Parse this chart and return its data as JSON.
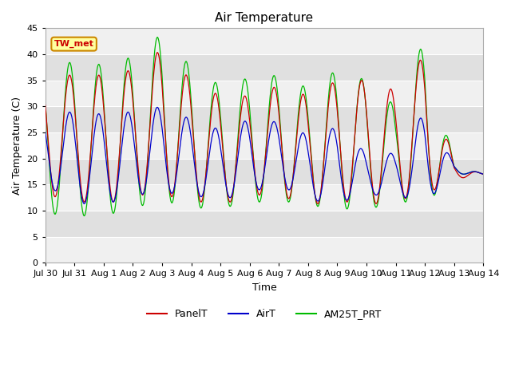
{
  "title": "Air Temperature",
  "ylabel": "Air Temperature (C)",
  "xlabel": "Time",
  "annotation": "TW_met",
  "ylim": [
    0,
    45
  ],
  "yticks": [
    0,
    5,
    10,
    15,
    20,
    25,
    30,
    35,
    40,
    45
  ],
  "x_tick_labels": [
    "Jul 30",
    "Jul 31",
    "Aug 1",
    "Aug 2",
    "Aug 3",
    "Aug 4",
    "Aug 5",
    "Aug 6",
    "Aug 7",
    "Aug 8",
    "Aug 9",
    "Aug 10",
    "Aug 11",
    "Aug 12",
    "Aug 13",
    "Aug 14"
  ],
  "line_colors": {
    "PanelT": "#cc0000",
    "AirT": "#0000cc",
    "AM25T_PRT": "#00bb00"
  },
  "fig_bg": "#ffffff",
  "plot_bg": "#e8e8e8",
  "band_light": "#f0f0f0",
  "band_dark": "#e0e0e0",
  "title_fontsize": 11,
  "label_fontsize": 9,
  "tick_fontsize": 8
}
